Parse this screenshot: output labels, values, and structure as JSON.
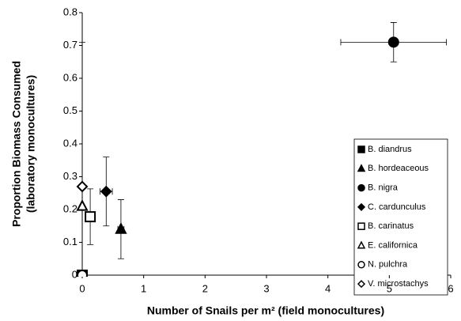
{
  "chart_data": {
    "type": "scatter",
    "xlabel": "Number of Snails per m² (field monocultures)",
    "ylabel": [
      "Proportion Biomass Consumed",
      "(laboratory monocultures)"
    ],
    "xlim": [
      0,
      6
    ],
    "xticks": [
      0,
      1,
      2,
      3,
      4,
      5,
      6
    ],
    "ylim": [
      0,
      0.8
    ],
    "yticks": [
      0,
      0.1,
      0.2,
      0.3,
      0.4,
      0.5,
      0.6,
      0.7,
      0.8
    ],
    "series": [
      {
        "name": "B. diandrus",
        "marker": "square",
        "filled": true,
        "color": "#000000",
        "x": [
          0
        ],
        "values": [
          0
        ]
      },
      {
        "name": "B. hordeaceous",
        "marker": "triangle",
        "filled": true,
        "color": "#000000",
        "x": [
          0.63
        ],
        "values": [
          0.14
        ],
        "xerr": [
          0.05
        ],
        "yerr": [
          0.09
        ]
      },
      {
        "name": "B. nigra",
        "marker": "circle",
        "filled": true,
        "color": "#000000",
        "x": [
          5.07
        ],
        "values": [
          0.71
        ],
        "xerr": [
          0.86
        ],
        "yerr": [
          0.06
        ]
      },
      {
        "name": "C. cardunculus",
        "marker": "diamond",
        "filled": true,
        "color": "#000000",
        "x": [
          0.39
        ],
        "values": [
          0.255
        ],
        "xerr": [
          0.1
        ],
        "yerr": [
          0.105
        ]
      },
      {
        "name": "B. carinatus",
        "marker": "square",
        "filled": false,
        "color": "#000000",
        "x": [
          0.13
        ],
        "values": [
          0.178
        ],
        "yerr": [
          0.085
        ]
      },
      {
        "name": "E. californica",
        "marker": "triangle",
        "filled": false,
        "color": "#000000",
        "x": [
          0
        ],
        "values": [
          0.21
        ]
      },
      {
        "name": "N. pulchra",
        "marker": "circle",
        "filled": false,
        "color": "#000000",
        "x": [
          0
        ],
        "values": [
          0
        ]
      },
      {
        "name": "V. microstachys",
        "marker": "diamond",
        "filled": false,
        "color": "#000000",
        "x": [
          0
        ],
        "values": [
          0.27
        ],
        "yerr": [
          0.44
        ]
      }
    ]
  }
}
